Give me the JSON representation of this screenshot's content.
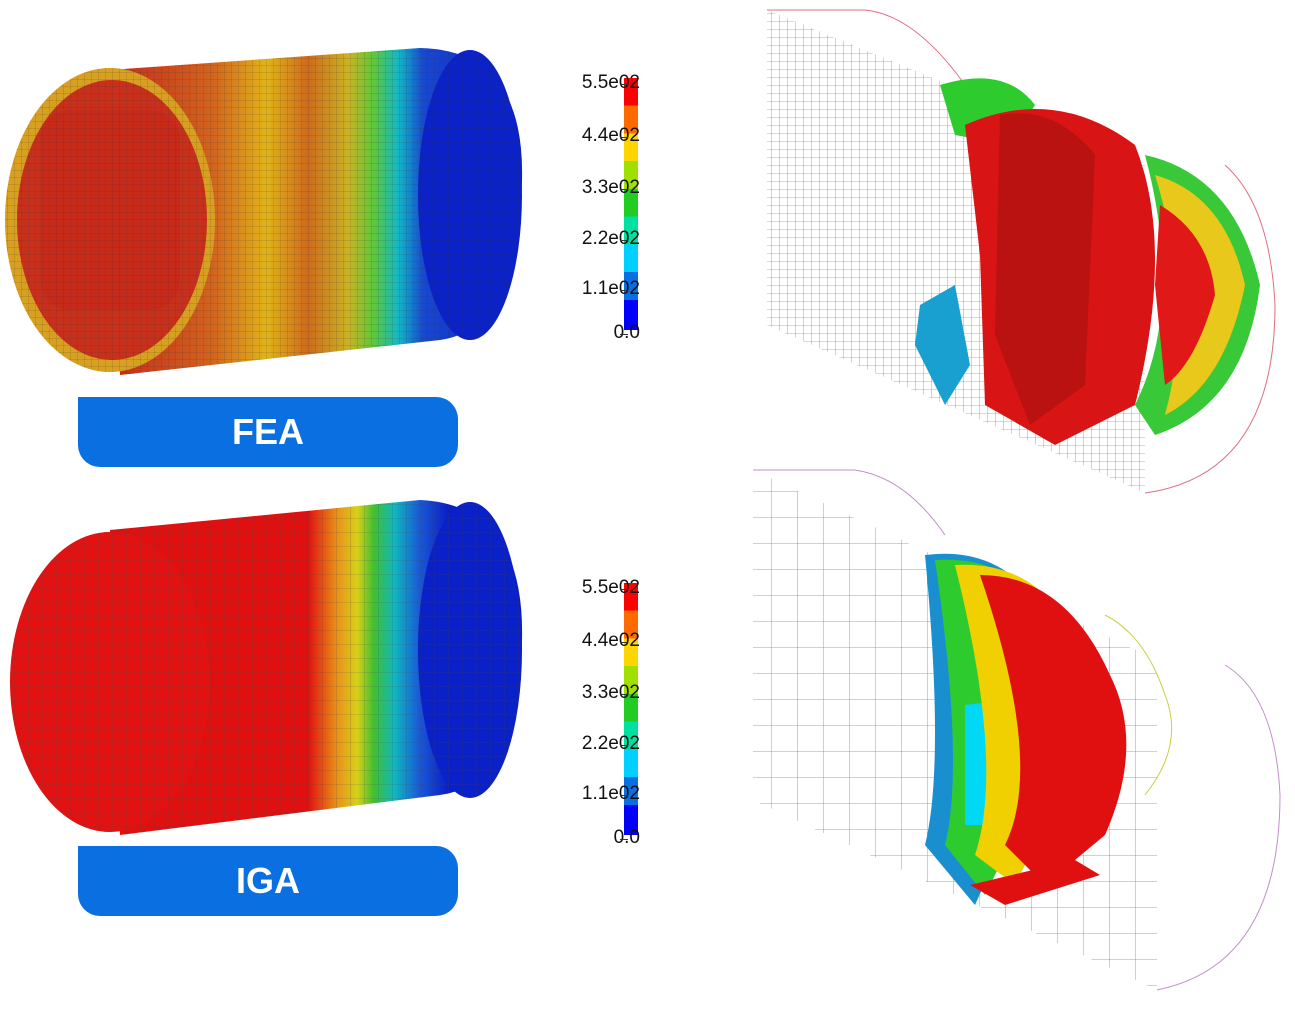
{
  "labels": {
    "fea": "FEA",
    "iga": "IGA"
  },
  "color_scale": {
    "ticks": [
      "5.5e02",
      "4.4e02",
      "3.3e02",
      "2.2e02",
      "1.1e02",
      "0.0"
    ],
    "colors": [
      "#ff0000",
      "#ff6a00",
      "#ffd500",
      "#a0e000",
      "#22cc22",
      "#00e0a0",
      "#00cfff",
      "#0a6fe0",
      "#0000ff"
    ]
  },
  "colors": {
    "badge": "#0a6fe0",
    "red": "#e00000",
    "orange": "#e06a10",
    "yellow": "#e6d000",
    "green": "#2ed12e",
    "cyan": "#00d5f0",
    "blue": "#0a1fd0"
  }
}
